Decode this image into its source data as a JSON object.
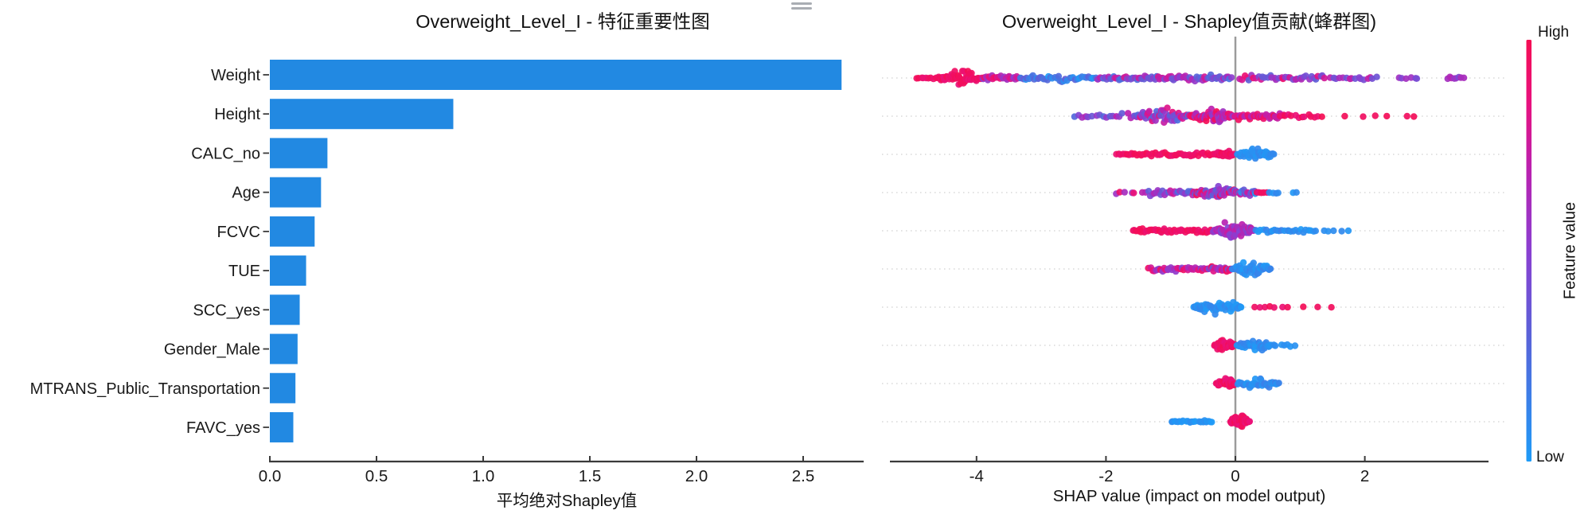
{
  "page": {
    "background": "#ffffff"
  },
  "artifact": {
    "note": "small gray clipped marker at top center"
  },
  "colorbar": {
    "high_label": "High",
    "low_label": "Low",
    "title": "Feature value",
    "stops": [
      [
        0,
        "#1e9bf7"
      ],
      [
        0.3,
        "#5a62d8"
      ],
      [
        0.5,
        "#8a3fd1"
      ],
      [
        0.7,
        "#bc20ae"
      ],
      [
        0.85,
        "#e8117e"
      ],
      [
        1,
        "#f50d53"
      ]
    ]
  },
  "chart_data": [
    {
      "type": "bar",
      "orientation": "horizontal",
      "title": "Overweight_Level_I - 特征重要性图",
      "xlabel": "平均绝对Shapley值",
      "categories": [
        "Weight",
        "Height",
        "CALC_no",
        "Age",
        "FCVC",
        "TUE",
        "SCC_yes",
        "Gender_Male",
        "MTRANS_Public_Transportation",
        "FAVC_yes"
      ],
      "values": [
        2.68,
        0.86,
        0.27,
        0.24,
        0.21,
        0.17,
        0.14,
        0.13,
        0.12,
        0.11
      ],
      "xlim": [
        0,
        2.78
      ],
      "xticks": [
        0,
        0.5,
        1,
        1.5,
        2,
        2.5
      ],
      "xtick_labels": [
        "0.0",
        "0.5",
        "1.0",
        "1.5",
        "2.0",
        "2.5"
      ],
      "bar_color": "#2289e2",
      "grid": false
    },
    {
      "type": "scatter",
      "subtype": "beeswarm",
      "title": "Overweight_Level_I - Shapley值贡献(蜂群图)",
      "xlabel": "SHAP value (impact on model output)",
      "features": [
        "Weight",
        "Height",
        "CALC_no",
        "Age",
        "FCVC",
        "TUE",
        "SCC_yes",
        "Gender_Male",
        "MTRANS_Public_Transportation",
        "FAVC_yes"
      ],
      "xlim": [
        -5.3,
        3.9
      ],
      "xticks": [
        -4,
        -2,
        0,
        2
      ],
      "xtick_labels": [
        "-4",
        "-2",
        "0",
        "2"
      ],
      "zero_line_color": "#9b9b9b",
      "gridline_color": "#e2e2e2",
      "legend_position": "right-colorbar",
      "swarm": [
        {
          "feature": "Weight",
          "segments": [
            {
              "x": [
                -4.95,
                -4.6
              ],
              "n": 9,
              "t": [
                0.88,
                1
              ],
              "s": 4
            },
            {
              "x": [
                -4.6,
                -3.95
              ],
              "n": 55,
              "t": [
                0.85,
                1
              ],
              "s": 13,
              "blob": true
            },
            {
              "x": [
                -3.95,
                -3.35
              ],
              "n": 28,
              "t": [
                0.5,
                1
              ],
              "s": 7
            },
            {
              "x": [
                -3.35,
                -2.15
              ],
              "n": 42,
              "t": [
                0,
                0.35
              ],
              "s": 7,
              "blob": true
            },
            {
              "x": [
                -2.15,
                -0.05
              ],
              "n": 85,
              "t": [
                0.15,
                0.8
              ],
              "s": 5.5
            },
            {
              "x": [
                0.05,
                1.4
              ],
              "n": 38,
              "t": [
                0.3,
                0.95
              ],
              "s": 5
            },
            {
              "x": [
                1.45,
                2.2
              ],
              "n": 16,
              "t": [
                0.35,
                0.75
              ],
              "s": 4.5
            },
            {
              "x": [
                2.5,
                2.85
              ],
              "n": 6,
              "t": [
                0.4,
                0.7
              ],
              "s": 3
            },
            {
              "x": [
                3.25,
                3.55
              ],
              "n": 8,
              "t": [
                0.4,
                0.7
              ],
              "s": 3
            }
          ]
        },
        {
          "feature": "Height",
          "segments": [
            {
              "x": [
                -2.5,
                -1.55
              ],
              "n": 18,
              "t": [
                0.25,
                0.7
              ],
              "s": 5
            },
            {
              "x": [
                -1.55,
                -0.7
              ],
              "n": 60,
              "t": [
                0.2,
                0.9
              ],
              "s": 13,
              "blob": true
            },
            {
              "x": [
                -0.7,
                0.0
              ],
              "n": 65,
              "t": [
                0.5,
                1
              ],
              "s": 13,
              "blob": true
            },
            {
              "x": [
                0.0,
                0.75
              ],
              "n": 35,
              "t": [
                0.65,
                1
              ],
              "s": 7
            },
            {
              "x": [
                0.75,
                1.35
              ],
              "n": 12,
              "t": [
                0.85,
                1
              ],
              "s": 4
            },
            {
              "x": [
                1.6,
                2.9
              ],
              "n": 6,
              "t": [
                0.88,
                1
              ],
              "s": 1.5
            }
          ]
        },
        {
          "feature": "CALC_no",
          "segments": [
            {
              "x": [
                -1.85,
                -0.3
              ],
              "n": 50,
              "t": [
                0.88,
                1
              ],
              "s": 4
            },
            {
              "x": [
                -0.3,
                -0.02
              ],
              "n": 22,
              "t": [
                0.88,
                1
              ],
              "s": 8,
              "blob": true
            },
            {
              "x": [
                0.02,
                0.6
              ],
              "n": 42,
              "t": [
                0,
                0.12
              ],
              "s": 13,
              "blob": true
            }
          ]
        },
        {
          "feature": "Age",
          "segments": [
            {
              "x": [
                -1.9,
                -1.35
              ],
              "n": 7,
              "t": [
                0.5,
                1
              ],
              "s": 3
            },
            {
              "x": [
                -1.35,
                -0.65
              ],
              "n": 26,
              "t": [
                0.2,
                0.8
              ],
              "s": 6
            },
            {
              "x": [
                -0.65,
                0.05
              ],
              "n": 65,
              "t": [
                0.2,
                1
              ],
              "s": 13,
              "blob": true
            },
            {
              "x": [
                0.05,
                0.32
              ],
              "n": 16,
              "t": [
                0,
                0.9
              ],
              "s": 6
            },
            {
              "x": [
                0.32,
                0.5
              ],
              "n": 5,
              "t": [
                0.85,
                1
              ],
              "s": 2.5
            },
            {
              "x": [
                0.5,
                0.68
              ],
              "n": 4,
              "t": [
                0,
                0.12
              ],
              "s": 2.5
            },
            {
              "x": [
                0.85,
                1.0
              ],
              "n": 2,
              "t": [
                0,
                0.1
              ],
              "s": 1.5
            }
          ]
        },
        {
          "feature": "FCVC",
          "segments": [
            {
              "x": [
                -1.6,
                -0.35
              ],
              "n": 48,
              "t": [
                0.88,
                1
              ],
              "s": 4.5
            },
            {
              "x": [
                -0.35,
                0.3
              ],
              "n": 65,
              "t": [
                0.45,
                0.75
              ],
              "s": 14,
              "blob": true
            },
            {
              "x": [
                0.3,
                1.25
              ],
              "n": 26,
              "t": [
                0,
                0.15
              ],
              "s": 4
            },
            {
              "x": [
                1.3,
                1.75
              ],
              "n": 5,
              "t": [
                0,
                0.1
              ],
              "s": 2
            }
          ]
        },
        {
          "feature": "TUE",
          "segments": [
            {
              "x": [
                -1.35,
                -0.45
              ],
              "n": 35,
              "t": [
                0.5,
                0.95
              ],
              "s": 4.5
            },
            {
              "x": [
                -0.45,
                -0.05
              ],
              "n": 22,
              "t": [
                0.4,
                1
              ],
              "s": 7,
              "blob": true
            },
            {
              "x": [
                -0.05,
                0.55
              ],
              "n": 50,
              "t": [
                0,
                0.15
              ],
              "s": 13,
              "blob": true
            }
          ]
        },
        {
          "feature": "SCC_yes",
          "segments": [
            {
              "x": [
                -0.65,
                0.1
              ],
              "n": 55,
              "t": [
                0,
                0.12
              ],
              "s": 13,
              "blob": true
            },
            {
              "x": [
                0.22,
                0.82
              ],
              "n": 7,
              "t": [
                0.88,
                1
              ],
              "s": 1.5
            },
            {
              "x": [
                0.95,
                1.5
              ],
              "n": 3,
              "t": [
                0.9,
                1
              ],
              "s": 1
            }
          ]
        },
        {
          "feature": "Gender_Male",
          "segments": [
            {
              "x": [
                -0.33,
                0.0
              ],
              "n": 42,
              "t": [
                0.85,
                1
              ],
              "s": 11,
              "blob": true
            },
            {
              "x": [
                0.02,
                0.55
              ],
              "n": 40,
              "t": [
                0,
                0.15
              ],
              "s": 10,
              "blob": true
            },
            {
              "x": [
                0.55,
                0.95
              ],
              "n": 7,
              "t": [
                0,
                0.1
              ],
              "s": 2.5
            }
          ]
        },
        {
          "feature": "MTRANS_Public_Transportation",
          "segments": [
            {
              "x": [
                -0.3,
                0.0
              ],
              "n": 40,
              "t": [
                0.85,
                1
              ],
              "s": 11,
              "blob": true
            },
            {
              "x": [
                0.02,
                0.68
              ],
              "n": 34,
              "t": [
                0,
                0.15
              ],
              "s": 9,
              "blob": true
            }
          ]
        },
        {
          "feature": "FAVC_yes",
          "segments": [
            {
              "x": [
                -1.0,
                -0.8
              ],
              "n": 8,
              "t": [
                0,
                0.1
              ],
              "s": 2
            },
            {
              "x": [
                -0.76,
                -0.62
              ],
              "n": 7,
              "t": [
                0,
                0.1
              ],
              "s": 2
            },
            {
              "x": [
                -0.58,
                -0.35
              ],
              "n": 10,
              "t": [
                0,
                0.1
              ],
              "s": 2
            },
            {
              "x": [
                -0.08,
                0.22
              ],
              "n": 48,
              "t": [
                0.85,
                1
              ],
              "s": 13,
              "blob": true
            }
          ]
        }
      ]
    }
  ]
}
